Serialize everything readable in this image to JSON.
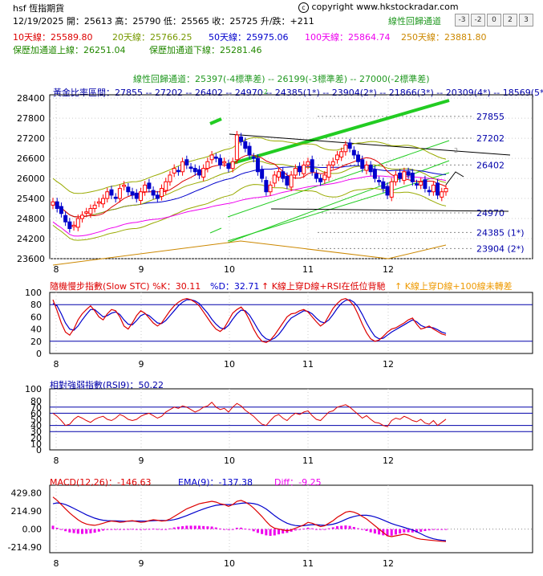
{
  "header": {
    "symbol": "hsf 恆指期貨",
    "copyright": "copyright www.hkstockradar.com",
    "date_line": "12/19/2025 開：25613 高：25790 低：25565 收：25725 升/跌：+211",
    "regression_title": "線性回歸通道",
    "buttons": [
      "-3",
      "-2",
      "0",
      "2",
      "3"
    ],
    "ma10": "10天線：25589.80",
    "ma20": "20天線：25766.25",
    "ma50": "50天線：25975.06",
    "ma100": "100天線：25864.74",
    "ma250": "250天線：23881.80",
    "upper_ch": "保歷加通道上線：26251.04",
    "lower_ch": "保歷加通道下線：25281.46",
    "reg_line": "線性回歸通道：25397(-4標準差) -- 26199(-3標準差) -- 27000(-2標準差)",
    "fib_line": "黃金比率區間：27855 -- 27202 -- 26402 -- 24970 -- 24385(1*) -- 23904(2*) -- 21866(3*) -- 20309(4*) -- 18569(5*)"
  },
  "colors": {
    "up": "#ff0000",
    "down": "#0000cc",
    "ma10": "#dd0000",
    "ma20": "#99aa00",
    "ma50": "#0000cc",
    "ma100": "#ee00ee",
    "ma250": "#cc8800",
    "green": "#22cc22",
    "macd_bar": "#ee00ee"
  },
  "chart_data": [
    {
      "type": "candlestick",
      "x_ticks": [
        "8",
        "9",
        "10",
        "11",
        "12"
      ],
      "y_ticks": [
        23600,
        24200,
        24800,
        25400,
        26000,
        26600,
        27200,
        27800,
        28400
      ],
      "ylim": [
        23600,
        28500
      ],
      "fib_labels": [
        "27855",
        "27202",
        "26402",
        "24970",
        "24385 (1*)",
        "23904 (2*)"
      ],
      "fib_values": [
        27855,
        27202,
        26402,
        24970,
        24385,
        23904
      ],
      "channel_marks": [
        "-2",
        "2"
      ],
      "series_close": [
        25300,
        25100,
        24950,
        24700,
        24500,
        24600,
        24800,
        24900,
        25000,
        25100,
        25200,
        25300,
        25400,
        25600,
        25500,
        25400,
        25700,
        25800,
        25600,
        25500,
        25400,
        25600,
        25800,
        25700,
        25500,
        25400,
        25700,
        25900,
        26100,
        26300,
        26200,
        26500,
        26400,
        26300,
        26200,
        26100,
        26300,
        26500,
        26700,
        26600,
        26400,
        26500,
        26300,
        26500,
        27300,
        27100,
        26900,
        26700,
        26600,
        26200,
        26000,
        25600,
        25800,
        26100,
        26200,
        26000,
        25800,
        26100,
        26300,
        26200,
        26400,
        26500,
        26200,
        26000,
        25900,
        26100,
        26400,
        26500,
        26700,
        26800,
        27000,
        26900,
        26700,
        26500,
        26300,
        26400,
        26200,
        26000,
        25900,
        25700,
        25500,
        25900,
        26100,
        26000,
        26200,
        26100,
        25900,
        25800,
        25900,
        25700,
        25600,
        25800,
        25500,
        25600,
        25700
      ]
    },
    {
      "type": "line",
      "title": "隨機慢步指數(Slow STC) %K：30.11",
      "d_label": "%D：32.71",
      "signal1": "K線上穿D線+RSI在低位背馳",
      "signal2": "K線上穿D線+100線未轉差",
      "y_ticks": [
        0,
        20,
        40,
        60,
        80,
        100
      ],
      "ylim": [
        0,
        100
      ],
      "k": [
        88,
        70,
        50,
        35,
        30,
        40,
        55,
        65,
        72,
        78,
        70,
        60,
        55,
        65,
        72,
        70,
        60,
        45,
        40,
        50,
        62,
        70,
        66,
        58,
        50,
        45,
        50,
        60,
        70,
        78,
        84,
        88,
        90,
        88,
        84,
        78,
        68,
        58,
        48,
        40,
        36,
        42,
        54,
        66,
        72,
        76,
        68,
        55,
        40,
        28,
        20,
        18,
        22,
        30,
        40,
        50,
        60,
        65,
        66,
        70,
        72,
        68,
        60,
        52,
        45,
        50,
        62,
        74,
        82,
        88,
        90,
        86,
        78,
        64,
        48,
        34,
        24,
        20,
        22,
        28,
        35,
        40,
        42,
        46,
        50,
        55,
        58,
        48,
        40,
        42,
        45,
        40,
        36,
        32,
        30
      ],
      "d": [
        82,
        78,
        65,
        50,
        40,
        38,
        45,
        55,
        64,
        72,
        72,
        66,
        60,
        62,
        66,
        68,
        64,
        55,
        48,
        47,
        54,
        62,
        65,
        62,
        56,
        50,
        49,
        54,
        62,
        70,
        78,
        84,
        88,
        88,
        86,
        82,
        74,
        66,
        56,
        48,
        42,
        40,
        46,
        56,
        65,
        71,
        70,
        63,
        52,
        40,
        30,
        24,
        22,
        25,
        31,
        40,
        50,
        58,
        62,
        66,
        70,
        69,
        65,
        58,
        52,
        50,
        55,
        64,
        74,
        82,
        87,
        88,
        84,
        76,
        64,
        50,
        38,
        28,
        24,
        25,
        30,
        35,
        39,
        43,
        47,
        51,
        55,
        52,
        46,
        43,
        43,
        42,
        39,
        35,
        32.71
      ]
    },
    {
      "type": "line",
      "title": "相對強弱指數(RSI9)：50.22",
      "y_ticks": [
        0,
        10,
        20,
        30,
        40,
        50,
        60,
        70,
        80,
        90,
        100
      ],
      "ylim": [
        0,
        100
      ],
      "rsi": [
        60,
        55,
        48,
        40,
        42,
        50,
        55,
        52,
        48,
        45,
        50,
        53,
        55,
        50,
        48,
        52,
        58,
        55,
        50,
        48,
        50,
        55,
        58,
        60,
        56,
        52,
        55,
        62,
        66,
        70,
        68,
        72,
        70,
        66,
        62,
        65,
        70,
        72,
        78,
        70,
        66,
        68,
        62,
        70,
        76,
        72,
        65,
        60,
        55,
        48,
        42,
        40,
        48,
        55,
        58,
        52,
        48,
        55,
        60,
        58,
        62,
        64,
        56,
        50,
        48,
        55,
        62,
        64,
        70,
        72,
        74,
        70,
        64,
        58,
        52,
        56,
        50,
        45,
        44,
        40,
        38,
        48,
        52,
        50,
        55,
        52,
        48,
        46,
        50,
        44,
        42,
        48,
        40,
        45,
        50.22
      ]
    },
    {
      "type": "line",
      "title": "MACD(12,26)：-146.63",
      "ema_label": "EMA(9)：-137.38",
      "diff_label": "Diff：-9.25",
      "y_ticks": [
        "429.80",
        "214.90",
        "0.00",
        "-214.90"
      ],
      "y_values": [
        429.8,
        214.9,
        0,
        -214.9
      ],
      "ylim": [
        -280,
        520
      ],
      "macd": [
        380,
        340,
        290,
        240,
        190,
        150,
        110,
        80,
        60,
        50,
        45,
        55,
        70,
        85,
        95,
        90,
        80,
        85,
        95,
        100,
        90,
        80,
        85,
        100,
        110,
        105,
        95,
        100,
        120,
        150,
        180,
        210,
        240,
        260,
        280,
        300,
        310,
        320,
        330,
        320,
        300,
        290,
        270,
        290,
        330,
        340,
        320,
        290,
        250,
        200,
        150,
        90,
        40,
        10,
        0,
        -10,
        -20,
        -10,
        10,
        30,
        50,
        80,
        70,
        50,
        30,
        40,
        70,
        100,
        140,
        170,
        200,
        210,
        200,
        180,
        150,
        120,
        80,
        40,
        0,
        -40,
        -80,
        -90,
        -80,
        -70,
        -60,
        -70,
        -90,
        -110,
        -120,
        -125,
        -130,
        -135,
        -140,
        -145,
        -146.63
      ],
      "ema": [
        300,
        310,
        305,
        290,
        270,
        245,
        220,
        195,
        170,
        150,
        130,
        115,
        105,
        100,
        98,
        97,
        95,
        93,
        93,
        95,
        96,
        95,
        94,
        96,
        100,
        102,
        102,
        101,
        104,
        112,
        125,
        142,
        160,
        180,
        200,
        220,
        238,
        255,
        270,
        282,
        288,
        290,
        290,
        290,
        298,
        306,
        310,
        309,
        302,
        290,
        268,
        238,
        200,
        160,
        125,
        95,
        70,
        52,
        42,
        38,
        40,
        48,
        52,
        52,
        48,
        46,
        50,
        58,
        72,
        92,
        114,
        134,
        150,
        160,
        164,
        164,
        157,
        145,
        128,
        108,
        86,
        66,
        50,
        35,
        20,
        5,
        -10,
        -30,
        -55,
        -80,
        -100,
        -115,
        -125,
        -132,
        -137.38
      ]
    }
  ]
}
